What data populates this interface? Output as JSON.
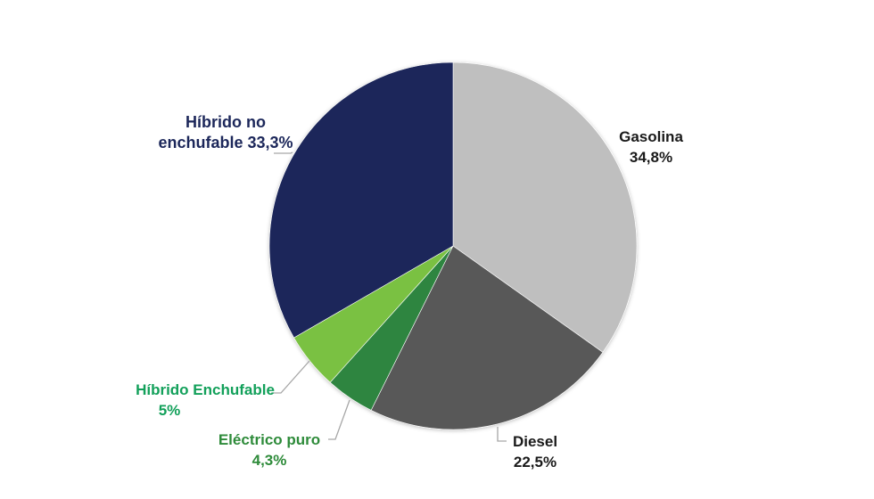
{
  "chart_data": {
    "type": "pie",
    "title": "",
    "start_angle_deg": 0,
    "direction": "clockwise",
    "slices": [
      {
        "label": "Gasolina",
        "value": 34.8,
        "display": "34,8%",
        "color": "#bfbfbf",
        "label_color": "#1a1a1a"
      },
      {
        "label": "Diesel",
        "value": 22.5,
        "display": "22,5%",
        "color": "#595959",
        "label_color": "#1a1a1a"
      },
      {
        "label": "Eléctrico puro",
        "value": 4.3,
        "display": "4,3%",
        "color": "#2e8540",
        "label_color": "#2e8b3a"
      },
      {
        "label": "Híbrido Enchufable",
        "value": 5.0,
        "display": "5%",
        "color": "#7ac143",
        "label_color": "#12a05a"
      },
      {
        "label": "Híbrido no enchufable",
        "value": 33.3,
        "display": "33,3%",
        "color": "#1c275a",
        "label_color": "#1c275a"
      }
    ],
    "legend": "none",
    "data_labels": "outside with leader lines"
  },
  "labels": {
    "gasolina": {
      "line1": "Gasolina",
      "line2": "34,8%"
    },
    "diesel": {
      "line1": "Diesel",
      "line2": "22,5%"
    },
    "electrico": {
      "line1": "Eléctrico puro",
      "line2": "4,3%"
    },
    "hibrido_enchufable": {
      "line1": "Híbrido Enchufable",
      "line2": "5%"
    },
    "hibrido_no_enchufable": {
      "line1": "Híbrido no",
      "line2": "enchufable 33,3%"
    }
  }
}
